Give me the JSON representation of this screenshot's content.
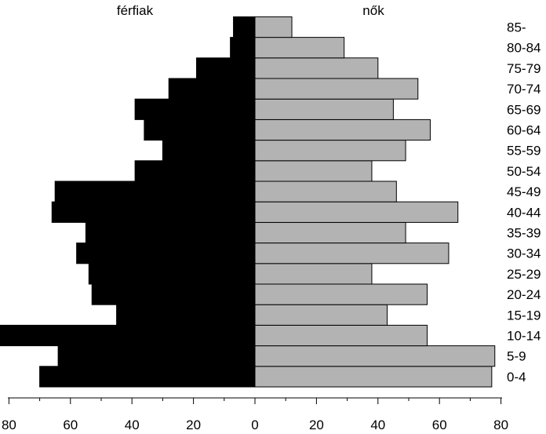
{
  "chart_data": {
    "type": "bar",
    "orientation": "horizontal",
    "title": "",
    "categories": [
      "0-4",
      "5-9",
      "10-14",
      "15-19",
      "20-24",
      "25-29",
      "30-34",
      "35-39",
      "40-44",
      "45-49",
      "50-54",
      "55-59",
      "60-64",
      "65-69",
      "70-74",
      "75-79",
      "80-84",
      "85-"
    ],
    "series": [
      {
        "name": "férfiak",
        "color": "#000000",
        "direction": "left",
        "values": [
          70,
          64,
          83,
          45,
          53,
          54,
          58,
          55,
          66,
          65,
          39,
          30,
          36,
          39,
          28,
          19,
          8,
          7
        ]
      },
      {
        "name": "nők",
        "color": "#b3b3b3",
        "direction": "right",
        "values": [
          77,
          78,
          56,
          43,
          56,
          38,
          63,
          49,
          66,
          46,
          38,
          49,
          57,
          45,
          53,
          40,
          29,
          12
        ]
      }
    ],
    "xticks": [
      80,
      60,
      40,
      20,
      0,
      20,
      40,
      60,
      80
    ],
    "xlim": [
      -83,
      80
    ],
    "legend": "none",
    "grid": false
  }
}
